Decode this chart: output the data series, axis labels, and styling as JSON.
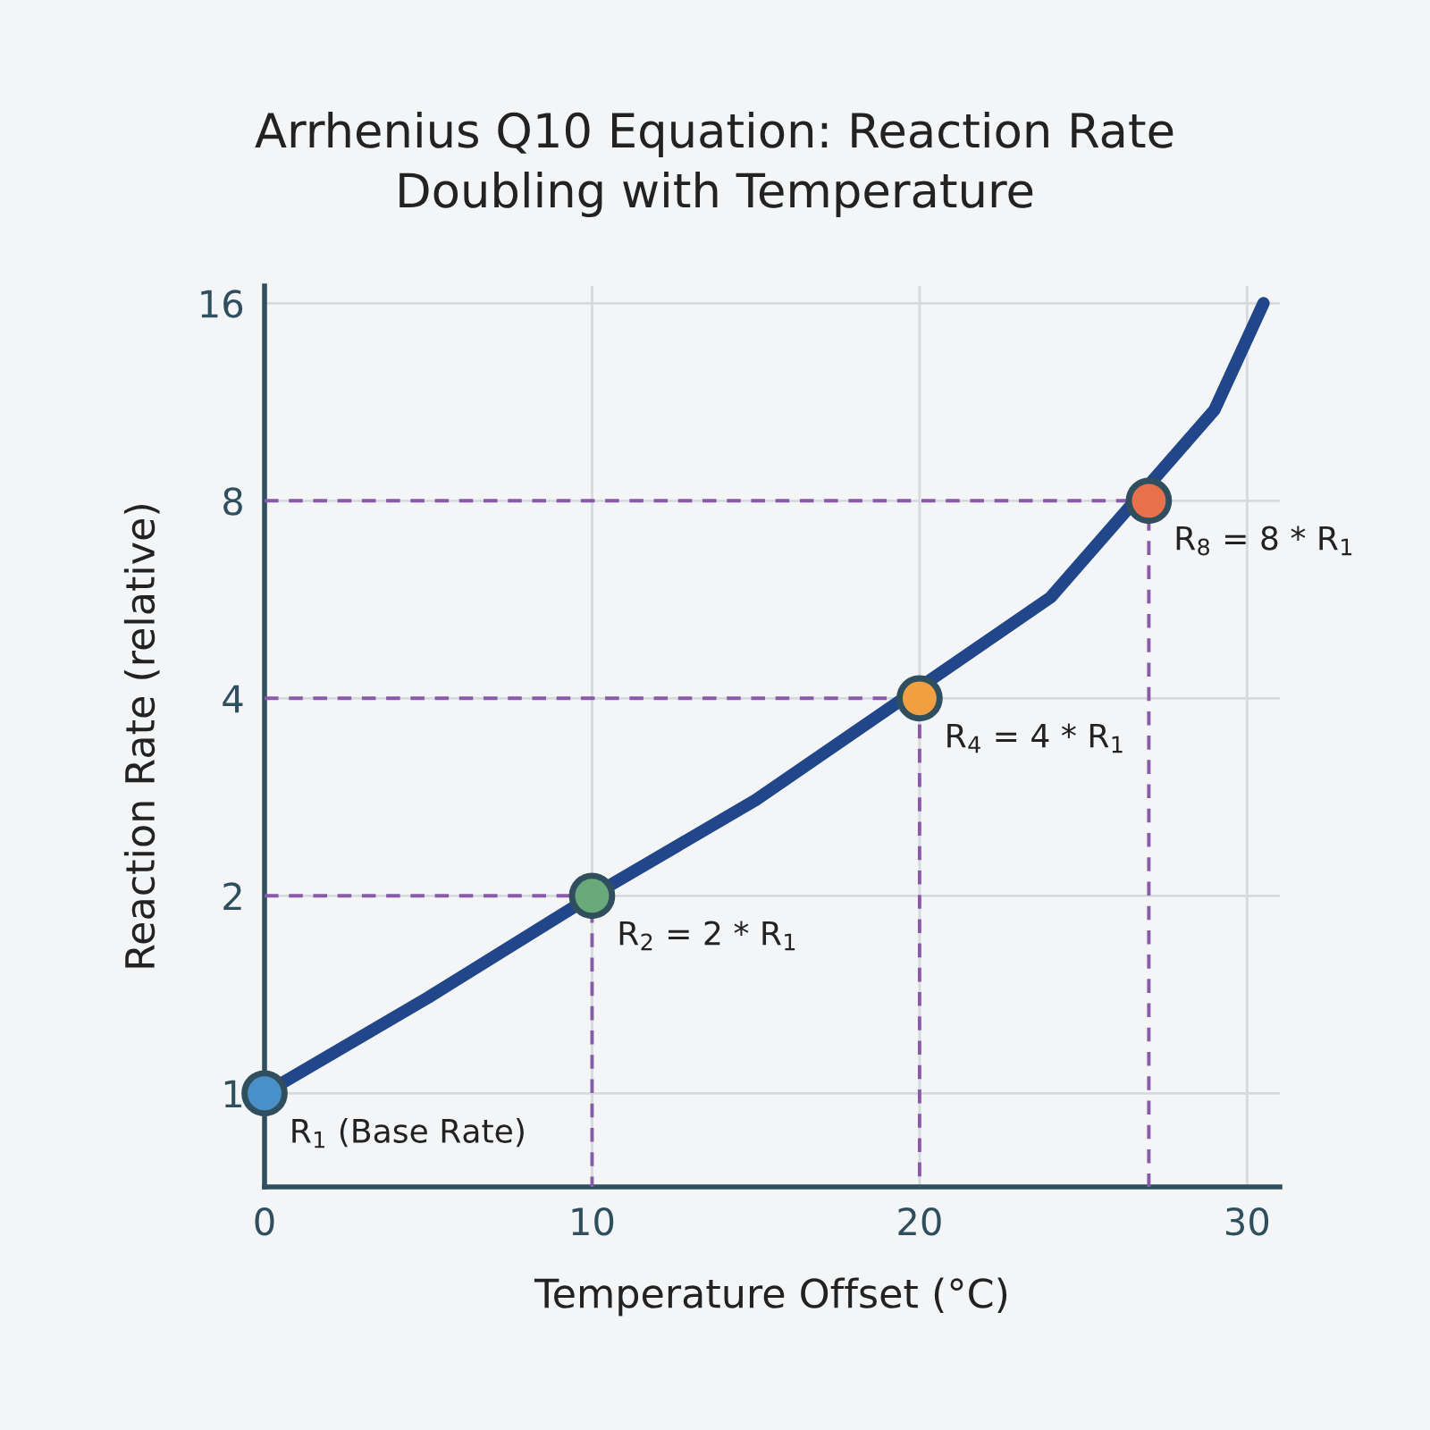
{
  "chart_data": {
    "type": "line",
    "title": "Arrhenius Q10 Equation: Reaction Rate\nDoubling with Temperature",
    "xlabel": "Temperature Offset (°C)",
    "ylabel": "Reaction Rate (relative)",
    "log": "y",
    "xlim": [
      0,
      31
    ],
    "ylim": [
      0.72,
      17
    ],
    "xticks": [
      0,
      10,
      20,
      30
    ],
    "yticks": [
      1,
      2,
      4,
      8,
      16
    ],
    "grid": true,
    "series": [
      {
        "color": "#8a5aaa",
        "line_style": "dashed",
        "marker": "none",
        "x": [
          0,
          10,
          10
        ],
        "values": [
          2,
          2,
          0.72
        ]
      },
      {
        "color": "#8a5aaa",
        "line_style": "dashed",
        "marker": "none",
        "x": [
          0,
          20,
          20
        ],
        "values": [
          4,
          4,
          0.72
        ]
      },
      {
        "color": "#8a5aaa",
        "line_style": "dashed",
        "marker": "none",
        "x": [
          0,
          27,
          27
        ],
        "values": [
          8,
          8,
          0.72
        ]
      },
      {
        "color": "#21468a",
        "line_style": "solid",
        "marker": "none",
        "x": [
          0,
          5,
          10,
          15,
          24,
          29,
          30.5
        ],
        "values": [
          1,
          1.4,
          2,
          2.8,
          5.7,
          11,
          16
        ]
      },
      {
        "type": "scatter",
        "marker": "circle",
        "x": [
          0,
          10,
          20,
          27
        ],
        "values": [
          1,
          2,
          4,
          8
        ],
        "colors": [
          "#4a90c8",
          "#6aaa7a",
          "#f0a040",
          "#e8704a"
        ]
      }
    ],
    "annotations": [
      {
        "text": "R$_{1}$ (Base Rate)",
        "x": 0,
        "y": 1
      },
      {
        "text": "R$_{2}$ = 2 * R$_{1}$",
        "x": 10,
        "y": 2
      },
      {
        "text": "R$_{4}$ = 4 * R$_{1}$",
        "x": 20,
        "y": 4
      },
      {
        "text": "R$_{8}$ = 8 * R$_{1}$",
        "x": 27,
        "y": 8
      }
    ]
  }
}
